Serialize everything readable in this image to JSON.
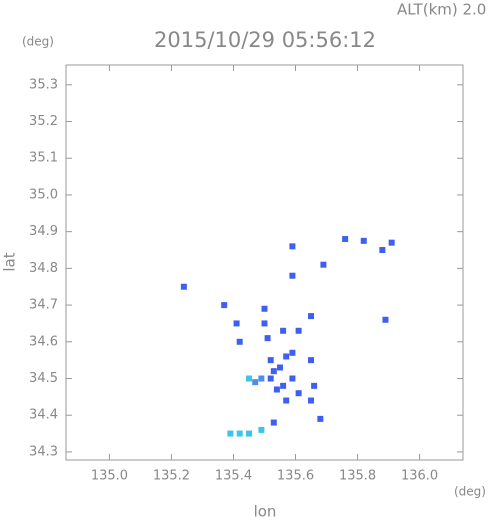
{
  "chart_data": {
    "type": "scatter",
    "title": "2015/10/29 05:56:12",
    "subtitle": "ALT(km) 2.0",
    "ylabel": "lat",
    "ylabel_unit": "(deg)",
    "xlabel": "lon",
    "xlabel_unit": "(deg)",
    "xlim": [
      134.86,
      136.14
    ],
    "ylim": [
      34.278,
      35.354
    ],
    "xticks": [
      {
        "value": 135,
        "label": "135.0"
      },
      {
        "value": 135.2,
        "label": "135.2"
      },
      {
        "value": 135.4,
        "label": "135.4"
      },
      {
        "value": 135.6,
        "label": "135.6"
      },
      {
        "value": 135.8,
        "label": "135.8"
      },
      {
        "value": 136,
        "label": "136.0"
      }
    ],
    "yticks": [
      34.3,
      34.4,
      34.5,
      34.6,
      34.7,
      34.8,
      34.9,
      {
        "value": 35,
        "label": "35.0"
      },
      35.1,
      35.2,
      35.3
    ],
    "series": [
      {
        "color": "#3f5ff0",
        "x": [
          135.24,
          135.76,
          135.82,
          135.88,
          135.91,
          135.59,
          135.59,
          135.69,
          135.37,
          135.41,
          135.42,
          135.5,
          135.5,
          135.51,
          135.52,
          135.52,
          135.53,
          135.56,
          135.57,
          135.59,
          135.61,
          135.65,
          135.56,
          135.59,
          135.65,
          135.66,
          135.65,
          135.57,
          135.61,
          135.68,
          135.89,
          135.53,
          135.55,
          135.54
        ],
        "values": [
          34.75,
          34.88,
          34.875,
          34.85,
          34.87,
          34.86,
          34.78,
          34.81,
          34.7,
          34.65,
          34.6,
          34.69,
          34.65,
          34.61,
          34.55,
          34.5,
          34.52,
          34.63,
          34.56,
          34.57,
          34.63,
          34.67,
          34.48,
          34.5,
          34.55,
          34.48,
          34.44,
          34.44,
          34.46,
          34.39,
          34.66,
          34.38,
          34.53,
          34.47
        ]
      },
      {
        "color": "#4d8ee8",
        "x": [
          135.49,
          135.47
        ],
        "values": [
          34.5,
          34.49
        ]
      },
      {
        "color": "#3cc4ea",
        "x": [
          135.45,
          135.39,
          135.42,
          135.45,
          135.49
        ],
        "values": [
          34.5,
          34.35,
          34.35,
          34.35,
          34.36
        ]
      }
    ]
  }
}
